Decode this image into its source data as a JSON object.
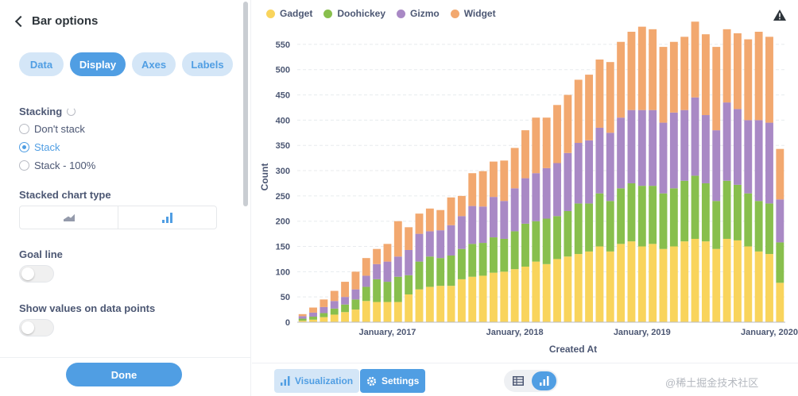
{
  "sidebar": {
    "title": "Bar options",
    "tabs": [
      {
        "label": "Data",
        "active": false
      },
      {
        "label": "Display",
        "active": true
      },
      {
        "label": "Axes",
        "active": false
      },
      {
        "label": "Labels",
        "active": false
      }
    ],
    "stacking_label": "Stacking",
    "stacking_options": [
      {
        "label": "Don't stack",
        "checked": false
      },
      {
        "label": "Stack",
        "checked": true
      },
      {
        "label": "Stack - 100%",
        "checked": false
      }
    ],
    "stacked_chart_type_label": "Stacked chart type",
    "stacked_chart_types": [
      {
        "icon": "area-chart-icon",
        "selected": false
      },
      {
        "icon": "bar-chart-icon",
        "selected": true
      }
    ],
    "goal_line_label": "Goal line",
    "goal_line_on": false,
    "show_values_label": "Show values on data points",
    "show_values_on": false,
    "done_label": "Done"
  },
  "toolbar": {
    "visualization_label": "Visualization",
    "settings_label": "Settings"
  },
  "watermark": "@稀土掘金技术社区",
  "colors": {
    "accent": "#509ee3",
    "Gadget": "#f9d45c",
    "Doohickey": "#88bf4d",
    "Gizmo": "#a989c5",
    "Widget": "#f2a86f"
  },
  "chart_data": {
    "type": "bar",
    "stacked": true,
    "xlabel": "Created At",
    "ylabel": "Count",
    "ylim": [
      0,
      575
    ],
    "yticks": [
      0,
      50,
      100,
      150,
      200,
      250,
      300,
      350,
      400,
      450,
      500,
      550
    ],
    "grid": true,
    "legend_position": "top-left",
    "x_tick_labels": [
      {
        "label": "January, 2017",
        "index": 8
      },
      {
        "label": "January, 2018",
        "index": 20
      },
      {
        "label": "January, 2019",
        "index": 32
      },
      {
        "label": "January, 2020",
        "index": 44
      }
    ],
    "series": [
      {
        "name": "Gadget",
        "values": [
          3,
          5,
          10,
          15,
          20,
          25,
          42,
          40,
          40,
          40,
          55,
          65,
          70,
          72,
          72,
          85,
          90,
          92,
          98,
          100,
          105,
          110,
          120,
          115,
          125,
          130,
          135,
          140,
          150,
          140,
          155,
          160,
          150,
          155,
          145,
          150,
          160,
          165,
          160,
          145,
          165,
          162,
          150,
          140,
          135,
          78
        ]
      },
      {
        "name": "Doohickey",
        "values": [
          4,
          6,
          8,
          12,
          15,
          20,
          28,
          45,
          40,
          50,
          38,
          55,
          60,
          55,
          60,
          60,
          65,
          65,
          70,
          65,
          75,
          85,
          80,
          90,
          85,
          90,
          100,
          95,
          105,
          100,
          110,
          115,
          120,
          115,
          110,
          115,
          120,
          125,
          115,
          95,
          115,
          110,
          105,
          100,
          100,
          80
        ]
      },
      {
        "name": "Gizmo",
        "values": [
          5,
          8,
          12,
          15,
          15,
          20,
          22,
          30,
          40,
          40,
          50,
          55,
          50,
          55,
          60,
          65,
          75,
          72,
          80,
          75,
          85,
          90,
          95,
          100,
          105,
          115,
          120,
          125,
          130,
          135,
          140,
          145,
          150,
          150,
          140,
          150,
          140,
          155,
          135,
          140,
          155,
          150,
          145,
          160,
          160,
          85
        ]
      },
      {
        "name": "Widget",
        "values": [
          4,
          10,
          15,
          20,
          30,
          35,
          35,
          30,
          35,
          70,
          45,
          40,
          45,
          40,
          55,
          40,
          65,
          70,
          70,
          80,
          80,
          95,
          110,
          100,
          115,
          115,
          125,
          130,
          135,
          140,
          150,
          155,
          165,
          160,
          150,
          140,
          145,
          150,
          160,
          165,
          145,
          150,
          160,
          175,
          170,
          100
        ]
      }
    ]
  }
}
